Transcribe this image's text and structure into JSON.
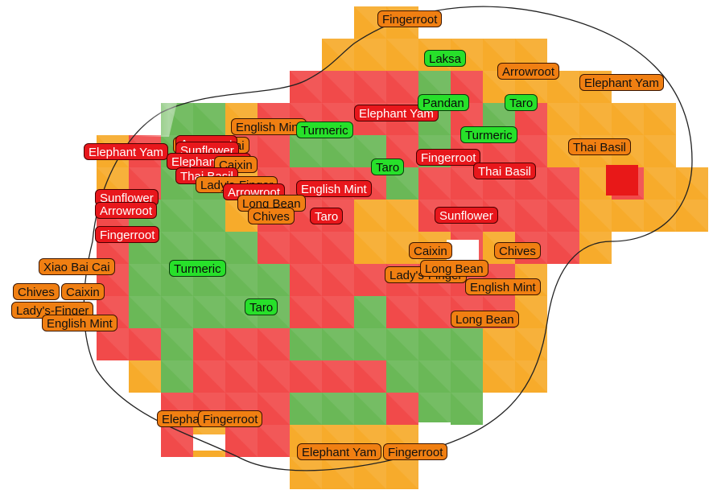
{
  "colors": {
    "orange": "#f6a51b",
    "red": "#f03c3c",
    "green": "#5fb34a",
    "label_orange": "#f07f12",
    "label_red": "#e8171c",
    "label_green": "#27e02a"
  },
  "map": {
    "labels": [
      {
        "text": "Fingerroot",
        "color": "orange"
      },
      {
        "text": "Laksa",
        "color": "green"
      },
      {
        "text": "Arrowroot",
        "color": "orange"
      },
      {
        "text": "Elephant Yam",
        "color": "orange"
      },
      {
        "text": "Elephant Yam",
        "color": "red"
      },
      {
        "text": "Pandan",
        "color": "green"
      },
      {
        "text": "Taro",
        "color": "green"
      },
      {
        "text": "English Mint",
        "color": "orange"
      },
      {
        "text": "Turmeric",
        "color": "green"
      },
      {
        "text": "Turmeric",
        "color": "green"
      },
      {
        "text": "Xiao Bai Cai",
        "color": "orange"
      },
      {
        "text": "Thai Basil",
        "color": "orange"
      },
      {
        "text": "Elephant Yam",
        "color": "red"
      },
      {
        "text": "Arrowroot",
        "color": "red"
      },
      {
        "text": "Sunflower",
        "color": "red"
      },
      {
        "text": "Elephant Yam",
        "color": "red"
      },
      {
        "text": "Fingerroot",
        "color": "red"
      },
      {
        "text": "Caixin",
        "color": "orange"
      },
      {
        "text": "Thai Basil",
        "color": "red"
      },
      {
        "text": "Taro",
        "color": "green"
      },
      {
        "text": "Thai Basil",
        "color": "red"
      },
      {
        "text": "Lady's-Finger",
        "color": "orange"
      },
      {
        "text": "English Mint",
        "color": "red"
      },
      {
        "text": "Arrowroot",
        "color": "red"
      },
      {
        "text": "Sunflower",
        "color": "red"
      },
      {
        "text": "Long Bean",
        "color": "orange"
      },
      {
        "text": "Arrowroot",
        "color": "red"
      },
      {
        "text": "Chives",
        "color": "orange"
      },
      {
        "text": "Taro",
        "color": "red"
      },
      {
        "text": "Sunflower",
        "color": "red"
      },
      {
        "text": "Fingerroot",
        "color": "red"
      },
      {
        "text": "Caixin",
        "color": "orange"
      },
      {
        "text": "Chives",
        "color": "orange"
      },
      {
        "text": "Xiao Bai Cai",
        "color": "orange"
      },
      {
        "text": "Lady's-Finger",
        "color": "orange"
      },
      {
        "text": "Turmeric",
        "color": "green"
      },
      {
        "text": "Long Bean",
        "color": "orange"
      },
      {
        "text": "Chives",
        "color": "orange"
      },
      {
        "text": "Caixin",
        "color": "orange"
      },
      {
        "text": "English Mint",
        "color": "orange"
      },
      {
        "text": "Lady's-Finger",
        "color": "orange"
      },
      {
        "text": "Taro",
        "color": "green"
      },
      {
        "text": "Long Bean",
        "color": "orange"
      },
      {
        "text": "English Mint",
        "color": "orange"
      },
      {
        "text": "Elephant Yam",
        "color": "orange"
      },
      {
        "text": "Fingerroot",
        "color": "orange"
      },
      {
        "text": "Elephant Yam",
        "color": "orange"
      },
      {
        "text": "Fingerroot",
        "color": "orange"
      }
    ]
  }
}
